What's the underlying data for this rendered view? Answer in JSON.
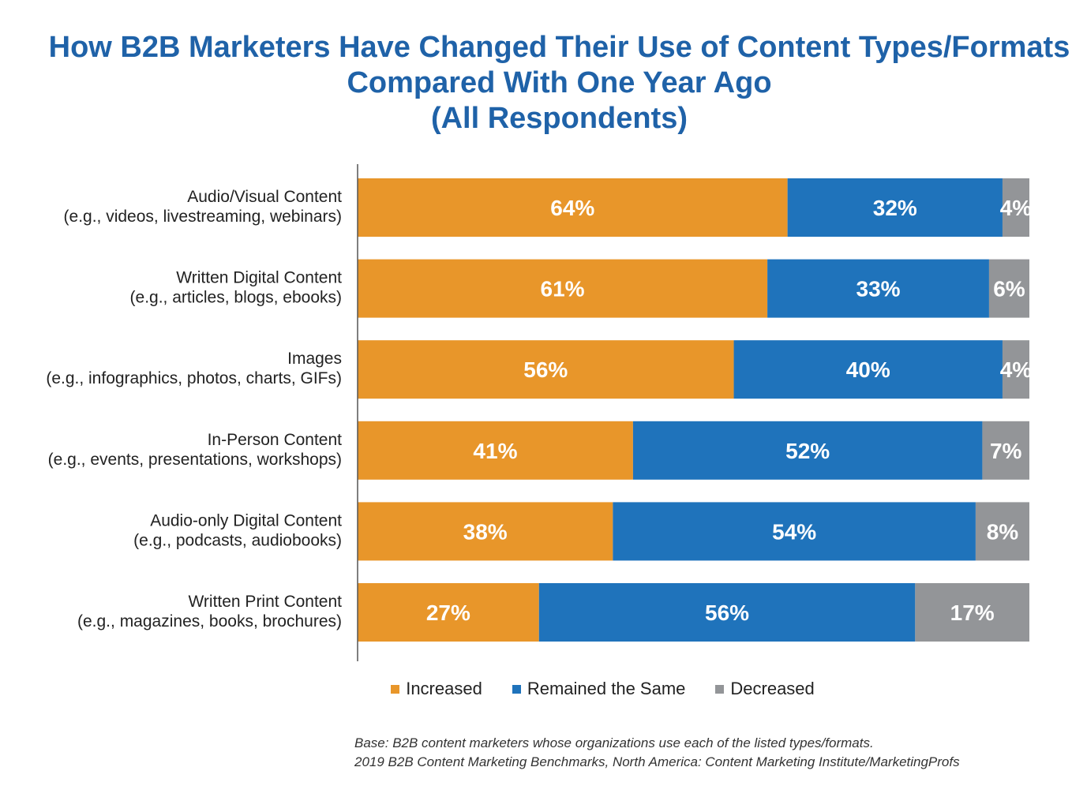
{
  "chart_data": {
    "type": "bar",
    "orientation": "horizontal",
    "stacked": true,
    "title_lines": [
      "How B2B Marketers Have Changed Their Use of Content Types/Formats",
      "Compared With One Year Ago",
      "(All Respondents)"
    ],
    "categories": [
      {
        "name": "Audio/Visual Content",
        "sub": "(e.g., videos, livestreaming, webinars)"
      },
      {
        "name": "Written Digital Content",
        "sub": "(e.g., articles, blogs, ebooks)"
      },
      {
        "name": "Images",
        "sub": "(e.g., infographics, photos, charts, GIFs)"
      },
      {
        "name": "In-Person Content",
        "sub": "(e.g., events, presentations, workshops)"
      },
      {
        "name": "Audio-only Digital Content",
        "sub": "(e.g., podcasts, audiobooks)"
      },
      {
        "name": "Written Print Content",
        "sub": "(e.g., magazines, books, brochures)"
      }
    ],
    "series": [
      {
        "name": "Increased",
        "color": "#e8962a",
        "values": [
          64,
          61,
          56,
          41,
          38,
          27
        ],
        "labels": [
          "64%",
          "61%",
          "56%",
          "41%",
          "38%",
          "27%"
        ]
      },
      {
        "name": "Remained the Same",
        "color": "#1f73bb",
        "values": [
          32,
          33,
          40,
          52,
          54,
          56
        ],
        "labels": [
          "32%",
          "33%",
          "40%",
          "52%",
          "54%",
          "56%"
        ]
      },
      {
        "name": "Decreased",
        "color": "#939598",
        "values": [
          4,
          6,
          4,
          7,
          8,
          17
        ],
        "labels": [
          "4%",
          "6%",
          "4%",
          "7%",
          "8%",
          "17%"
        ]
      }
    ],
    "xlim": [
      0,
      100
    ],
    "grid": false,
    "legend_position": "bottom"
  },
  "footnote": {
    "line1": "Base: B2B content marketers whose organizations use each of the listed types/formats.",
    "line2": "2019 B2B Content Marketing Benchmarks, North America: Content Marketing Institute/MarketingProfs"
  }
}
